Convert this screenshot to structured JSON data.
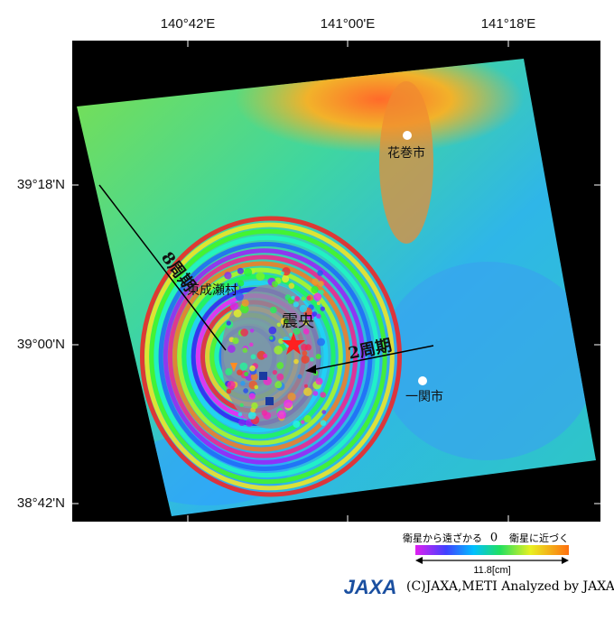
{
  "map": {
    "lon_labels": [
      "140°42'E",
      "141°00'E",
      "141°18'E"
    ],
    "lat_labels": [
      "39°18'N",
      "39°00'N",
      "38°42'N"
    ],
    "places": {
      "hanamaki": "花巻市",
      "ichinoseki": "一関市",
      "higashinaruse": "東成瀬村",
      "epicenter": "震央"
    },
    "annotations": {
      "west": "8周期",
      "east": "2周期"
    },
    "legend": {
      "left": "衛星から遠ざかる",
      "center": "0",
      "right": "衛星に近づく",
      "scale": "11.8[cm]"
    },
    "credit": "(C)JAXA,METI Analyzed by JAXA",
    "logo": "JAXA"
  }
}
